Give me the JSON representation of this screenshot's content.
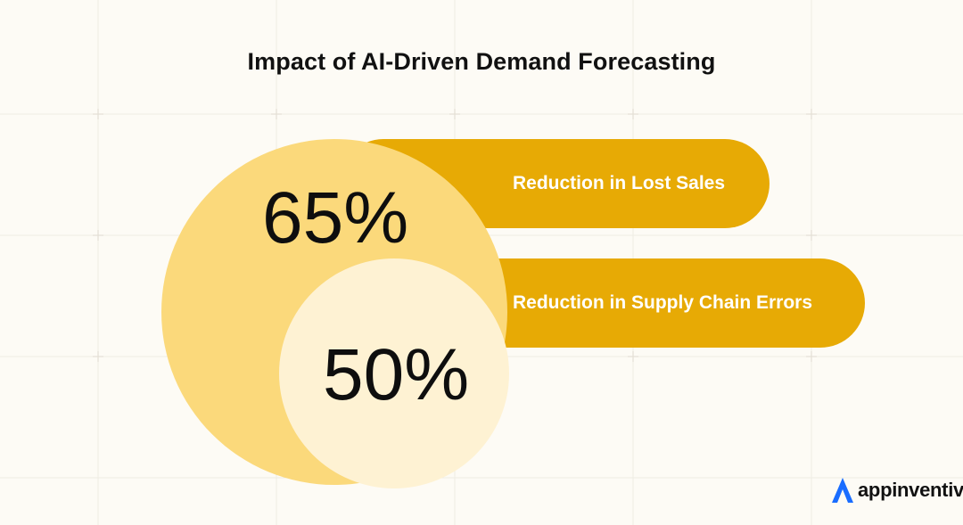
{
  "title": "Impact of AI-Driven Demand Forecasting",
  "stats": [
    {
      "value": "65%",
      "label": "Reduction in Lost Sales"
    },
    {
      "value": "50%",
      "label": "Reduction in Supply Chain Errors"
    }
  ],
  "brand": {
    "name": "appinventiv",
    "logo_icon": "appinventiv-logo-icon"
  },
  "colors": {
    "background": "#fdfbf5",
    "pill": "#e7aa05",
    "big_circle": "#fbd97b",
    "small_circle": "#fef2d3",
    "logo_blue": "#1a6dff"
  }
}
